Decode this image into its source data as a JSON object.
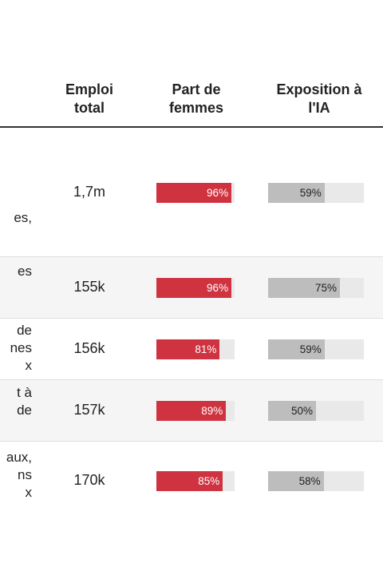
{
  "headers": {
    "emploi": "Emploi\ntotal",
    "part": "Part de\nfemmes",
    "exposition": "Exposition à\nl'IA"
  },
  "colors": {
    "women_bar": "#cf3340",
    "ai_bar": "#bdbdbd",
    "track": "#e9e9e9"
  },
  "chart_data": {
    "type": "table",
    "columns": [
      "Emploi total",
      "Part de femmes",
      "Exposition à l'IA"
    ],
    "rows": [
      {
        "occupation_fragment": "\nes,",
        "emploi": "1,7m",
        "part_femmes": 96,
        "part_label": "96%",
        "exposition": 59,
        "expo_label": "59%"
      },
      {
        "occupation_fragment": "es",
        "emploi": "155k",
        "part_femmes": 96,
        "part_label": "96%",
        "exposition": 75,
        "expo_label": "75%"
      },
      {
        "occupation_fragment": "de\nnes\nx",
        "emploi": "156k",
        "part_femmes": 81,
        "part_label": "81%",
        "exposition": 59,
        "expo_label": "59%"
      },
      {
        "occupation_fragment": "t à\nde",
        "emploi": "157k",
        "part_femmes": 89,
        "part_label": "89%",
        "exposition": 50,
        "expo_label": "50%"
      },
      {
        "occupation_fragment": "aux,\nns\nx",
        "emploi": "170k",
        "part_femmes": 85,
        "part_label": "85%",
        "exposition": 58,
        "expo_label": "58%"
      }
    ]
  }
}
